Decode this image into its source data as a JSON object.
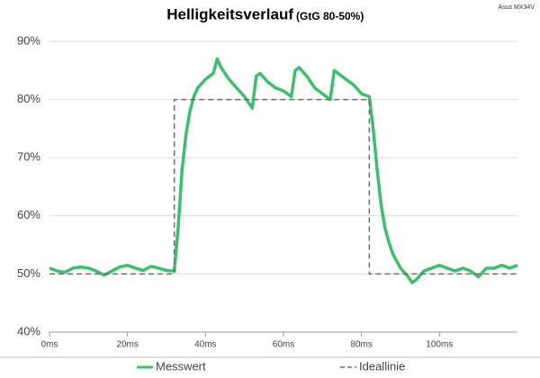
{
  "chart_data": {
    "type": "line",
    "title": "Helligkeitsverlauf",
    "subtitle": "(GtG 80-50%)",
    "annotation": "Asus MX34V",
    "xlim": [
      0,
      120
    ],
    "xticks": [
      {
        "value": 0,
        "label": "0ms"
      },
      {
        "value": 20,
        "label": "20ms"
      },
      {
        "value": 40,
        "label": "40ms"
      },
      {
        "value": 60,
        "label": "60ms"
      },
      {
        "value": 80,
        "label": "80ms"
      },
      {
        "value": 100,
        "label": "100ms"
      }
    ],
    "ylim": [
      40,
      90
    ],
    "yticks": [
      {
        "value": 40,
        "label": "40%"
      },
      {
        "value": 50,
        "label": "50%"
      },
      {
        "value": 60,
        "label": "60%"
      },
      {
        "value": 70,
        "label": "70%"
      },
      {
        "value": 80,
        "label": "80%"
      },
      {
        "value": 90,
        "label": "90%"
      }
    ],
    "grid": true,
    "legend": "bottom",
    "series": [
      {
        "name": "Messwert",
        "color": "#3dbf6e",
        "dash": false,
        "x": [
          0,
          2,
          4,
          6,
          8,
          10,
          12,
          14,
          16,
          18,
          20,
          22,
          24,
          26,
          28,
          30,
          32,
          33,
          34,
          35,
          36,
          37,
          38,
          40,
          42,
          43,
          44,
          46,
          48,
          50,
          52,
          53,
          54,
          56,
          58,
          60,
          62,
          63,
          64,
          66,
          68,
          70,
          72,
          73,
          74,
          76,
          78,
          80,
          82,
          83,
          84,
          85,
          86,
          87,
          88,
          90,
          92,
          93,
          94,
          96,
          98,
          100,
          102,
          104,
          106,
          108,
          110,
          112,
          114,
          116,
          118,
          120
        ],
        "values": [
          51,
          50.5,
          50.3,
          51,
          51.2,
          51,
          50.5,
          49.8,
          50.5,
          51.2,
          51.5,
          51,
          50.6,
          51.3,
          51,
          50.6,
          50.5,
          58,
          68,
          74,
          78,
          80.5,
          82,
          83.5,
          84.5,
          87,
          85.5,
          83.5,
          82,
          80.5,
          78.5,
          84,
          84.5,
          83,
          82,
          81.5,
          80.5,
          85,
          85.5,
          84,
          82,
          81,
          80,
          85,
          84.5,
          83.5,
          82.5,
          81,
          80.5,
          75,
          68,
          62,
          58,
          55.5,
          53.5,
          51,
          49.5,
          48.5,
          49,
          50.5,
          51,
          51.5,
          51,
          50.5,
          51,
          50.5,
          49.5,
          51,
          51,
          51.5,
          51,
          51.5
        ]
      },
      {
        "name": "Ideallinie",
        "color": "#6e6e6e",
        "dash": true,
        "x": [
          0,
          32,
          32,
          82,
          82,
          120
        ],
        "values": [
          50,
          50,
          80,
          80,
          50,
          50
        ]
      }
    ]
  }
}
